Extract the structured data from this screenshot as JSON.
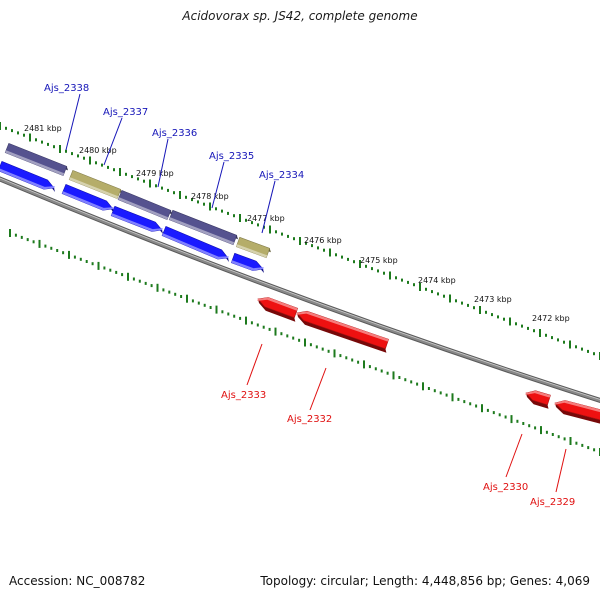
{
  "title": "Acidovorax sp. JS42, complete genome",
  "footer": {
    "accession": "Accession: NC_008782",
    "summary": "Topology: circular; Length: 4,448,856 bp; Genes: 4,069"
  },
  "colors": {
    "backbone": "#888888",
    "tick": "#1d7a1d",
    "forward_gene": "#1a1aff",
    "reverse_gene": "#ee1111",
    "feature_slate": "#55528f",
    "feature_khaki": "#b5ad6a",
    "label_top": "#1616b8",
    "label_bottom": "#e01010"
  },
  "scale_labels": [
    "2481 kbp",
    "2480 kbp",
    "2479 kbp",
    "2478 kbp",
    "2477 kbp",
    "2476 kbp",
    "2475 kbp",
    "2474 kbp",
    "2473 kbp",
    "2472 kbp"
  ],
  "gene_labels_top": [
    "Ajs_2338",
    "Ajs_2337",
    "Ajs_2336",
    "Ajs_2335",
    "Ajs_2334"
  ],
  "gene_labels_bottom": [
    "Ajs_2333",
    "Ajs_2332",
    "Ajs_2330",
    "Ajs_2329"
  ]
}
